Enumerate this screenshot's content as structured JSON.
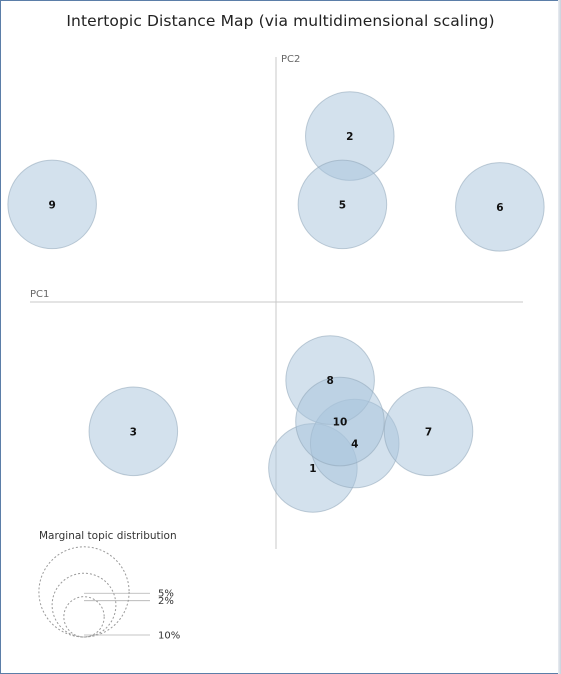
{
  "title": "Intertopic Distance Map (via multidimensional scaling)",
  "chart_data": {
    "type": "scatter",
    "subtype": "bubble",
    "title": "Intertopic Distance Map (via multidimensional scaling)",
    "xlabel": "PC1",
    "ylabel": "PC2",
    "xlim": [
      -1,
      1
    ],
    "ylim": [
      -1,
      1
    ],
    "grid": false,
    "bubble_color": "#a8c4dc",
    "bubble_stroke": "#8fa6b8",
    "axis_color": "#c8c8c8",
    "topics": [
      {
        "label": "1",
        "x": 0.15,
        "y": -0.68,
        "size": 10
      },
      {
        "label": "2",
        "x": 0.3,
        "y": 0.68,
        "size": 10
      },
      {
        "label": "3",
        "x": -0.58,
        "y": -0.53,
        "size": 10
      },
      {
        "label": "4",
        "x": 0.32,
        "y": -0.58,
        "size": 10
      },
      {
        "label": "5",
        "x": 0.27,
        "y": 0.4,
        "size": 10
      },
      {
        "label": "6",
        "x": 0.91,
        "y": 0.39,
        "size": 10
      },
      {
        "label": "7",
        "x": 0.62,
        "y": -0.53,
        "size": 10
      },
      {
        "label": "8",
        "x": 0.22,
        "y": -0.32,
        "size": 10
      },
      {
        "label": "9",
        "x": -0.91,
        "y": 0.4,
        "size": 10
      },
      {
        "label": "10",
        "x": 0.26,
        "y": -0.49,
        "size": 10
      }
    ],
    "legend": {
      "title": "Marginal topic distribution",
      "entries": [
        {
          "label": "2%",
          "value": 2
        },
        {
          "label": "5%",
          "value": 5
        },
        {
          "label": "10%",
          "value": 10
        }
      ]
    }
  }
}
